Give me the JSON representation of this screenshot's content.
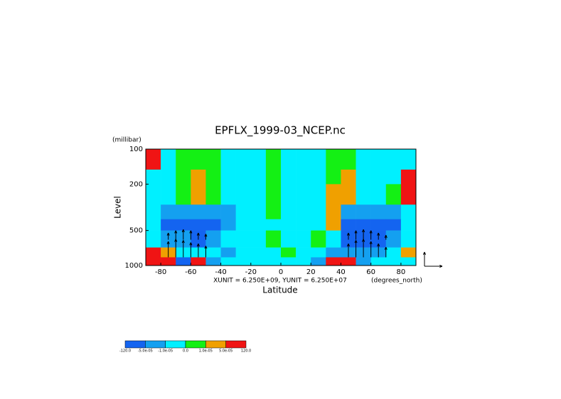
{
  "chart_data": {
    "type": "contour",
    "title": "EPFLX_1999-03_NCEP.nc",
    "ylabel": "Level",
    "yunit": "(millibar)",
    "xlabel": "Latitude",
    "xunit": "(degrees_north)",
    "annotation": "XUNIT = 6.250E+09, YUNIT = 6.250E+07",
    "xlim": [
      -90,
      90
    ],
    "xticks": [
      -80,
      -60,
      -40,
      -20,
      0,
      20,
      40,
      60,
      80
    ],
    "ylim": [
      100,
      1000
    ],
    "yticks": [
      100,
      200,
      500,
      1000
    ],
    "ylog": true,
    "lat_edges": [
      -90,
      -80,
      -70,
      -60,
      -50,
      -40,
      -30,
      -20,
      -10,
      0,
      10,
      20,
      30,
      40,
      50,
      60,
      70,
      80,
      90
    ],
    "level_edges": [
      100,
      150,
      200,
      300,
      400,
      500,
      700,
      850,
      1000
    ],
    "levels": [
      {
        "value": -120,
        "label": "-120.0"
      },
      {
        "value": -5e-05,
        "label": "-5.0e-05"
      },
      {
        "value": -1e-05,
        "label": "-1.0e-05"
      },
      {
        "value": 0,
        "label": "0.0"
      },
      {
        "value": 1e-05,
        "label": "1.0e-05"
      },
      {
        "value": 5e-05,
        "label": "5.0e-05"
      },
      {
        "value": 120,
        "label": "120.0"
      }
    ],
    "colors": [
      "#1464f0",
      "#14a0f0",
      "#00f0ff",
      "#14f014",
      "#f0a000",
      "#f01414"
    ],
    "z": [
      [
        0.0001,
        -5e-06,
        5e-06,
        5e-06,
        5e-06,
        -5e-06,
        -5e-06,
        -5e-06,
        5e-06,
        -5e-06,
        -5e-06,
        -5e-06,
        5e-06,
        5e-06,
        -5e-06,
        -5e-06,
        -5e-06,
        -5e-06
      ],
      [
        -5e-06,
        -5e-06,
        5e-06,
        3e-05,
        5e-06,
        -5e-06,
        -5e-06,
        -5e-06,
        5e-06,
        -5e-06,
        -5e-06,
        -5e-06,
        5e-06,
        3e-05,
        -5e-06,
        -5e-06,
        -5e-06,
        0.0001
      ],
      [
        -5e-06,
        -5e-06,
        5e-06,
        3e-05,
        5e-06,
        -5e-06,
        -5e-06,
        -5e-06,
        5e-06,
        -5e-06,
        -5e-06,
        -5e-06,
        3e-05,
        3e-05,
        -5e-06,
        -5e-06,
        5e-06,
        0.0001
      ],
      [
        -5e-06,
        -3e-05,
        -3e-05,
        -3e-05,
        -3e-05,
        -3e-05,
        -5e-06,
        -5e-06,
        5e-06,
        -5e-06,
        -5e-06,
        -5e-06,
        3e-05,
        -3e-05,
        -3e-05,
        -3e-05,
        -3e-05,
        -5e-06
      ],
      [
        -5e-06,
        -0.0001,
        -0.0001,
        -0.0001,
        -0.0001,
        -3e-05,
        -5e-06,
        -5e-06,
        -5e-06,
        -5e-06,
        -5e-06,
        -5e-06,
        3e-05,
        -0.0001,
        -0.0001,
        -0.0001,
        -0.0001,
        -5e-06
      ],
      [
        -5e-06,
        -3e-05,
        -3e-05,
        -0.0001,
        -3e-05,
        -5e-06,
        -5e-06,
        -5e-06,
        5e-06,
        -5e-06,
        -5e-06,
        5e-06,
        -5e-06,
        -0.0001,
        -0.0001,
        -0.0001,
        -3e-05,
        -5e-06
      ],
      [
        0.0001,
        3e-05,
        -5e-06,
        -5e-06,
        -5e-06,
        -3e-05,
        -5e-06,
        -5e-06,
        -5e-06,
        5e-06,
        -5e-06,
        -5e-06,
        -3e-05,
        -3e-05,
        -3e-05,
        -3e-05,
        -5e-06,
        3e-05
      ],
      [
        0.0001,
        0.0001,
        -0.0001,
        0.0001,
        -3e-05,
        -5e-06,
        -5e-06,
        -5e-06,
        -5e-06,
        -5e-06,
        -5e-06,
        -3e-05,
        0.0001,
        0.0001,
        -3e-05,
        -5e-06,
        -5e-06,
        -5e-06
      ]
    ],
    "vector_lat": [
      -75,
      -70,
      -65,
      -60,
      -55,
      -50,
      45,
      50,
      55,
      60,
      65,
      70
    ],
    "vectors": [
      {
        "level": 850,
        "v": [
          70000000,
          80000000,
          75000000,
          65000000,
          60000000,
          50000000,
          60000000,
          75000000,
          80000000,
          70000000,
          60000000,
          45000000
        ]
      },
      {
        "level": 600,
        "v": [
          30000000,
          40000000,
          45000000,
          40000000,
          30000000,
          25000000,
          30000000,
          40000000,
          45000000,
          40000000,
          30000000,
          20000000
        ]
      }
    ],
    "vector_ref": {
      "x": 6250000000,
      "y": 62500000
    }
  }
}
